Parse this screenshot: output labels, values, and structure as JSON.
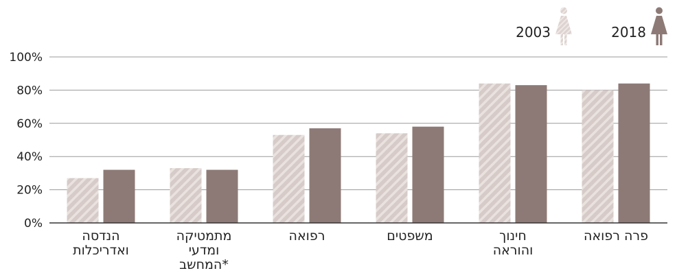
{
  "chart_data": {
    "type": "bar",
    "categories": [
      [
        "הנדסה",
        "ואדריכלות"
      ],
      [
        "מתמטיקה",
        "ומדעי",
        "המחשב*"
      ],
      [
        "רפואה"
      ],
      [
        "משפטים"
      ],
      [
        "חינוך",
        "והוראה"
      ],
      [
        "פרה רפואה"
      ]
    ],
    "series": [
      {
        "name": "2003",
        "values": [
          27,
          33,
          53,
          54,
          84,
          80
        ]
      },
      {
        "name": "2018",
        "values": [
          32,
          32,
          57,
          58,
          83,
          84
        ]
      }
    ],
    "yticks": [
      "0%",
      "20%",
      "40%",
      "60%",
      "80%",
      "100%"
    ],
    "ylim": [
      0,
      100
    ],
    "grid": true,
    "legend_position": "top-right"
  },
  "colors": {
    "series_2003": "#d6cbc8",
    "series_2003_stripe": "#e9e2df",
    "series_2018": "#8d7a76",
    "icon_2003": "#ddd3d0",
    "icon_2018": "#8d7a76",
    "grid": "#9a9a9a",
    "axis": "#333333"
  },
  "icons": {
    "legend_2003": "woman-icon",
    "legend_2018": "woman-icon"
  }
}
